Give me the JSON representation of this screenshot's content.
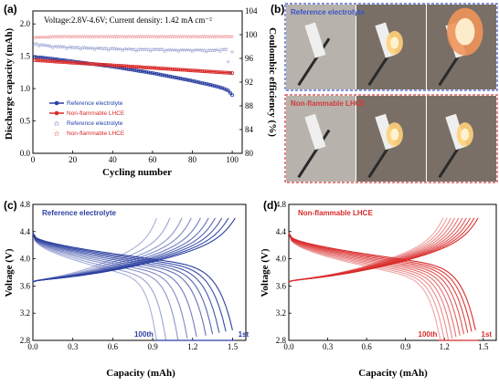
{
  "panels": {
    "a": "(a)",
    "b": "(b)",
    "c": "(c)",
    "d": "(d)"
  },
  "chart_data": [
    {
      "id": "a",
      "type": "scatter",
      "annotation": "Voltage:2.8V-4.6V; Current density: 1.42 mA cm⁻²",
      "xlabel": "Cycling number",
      "ylabel": "Discharge capacity (mAh)",
      "y2label": "Coulombic efficiency (%)",
      "xlim": [
        0,
        105
      ],
      "ylim": [
        0.0,
        2.2
      ],
      "y2lim": [
        80,
        104
      ],
      "xticks": [
        "0",
        "20",
        "40",
        "60",
        "80",
        "100"
      ],
      "yticks": [
        "0.0",
        "0.5",
        "1.0",
        "1.5",
        "2.0"
      ],
      "y2ticks": [
        "80",
        "84",
        "88",
        "92",
        "96",
        "100",
        "104"
      ],
      "legend": [
        "Reference electrolyte",
        "Non-flammable LHCE",
        "Reference electrolyte",
        "Non-flammable LHCE"
      ],
      "colors": {
        "reference": "#2b3fa0",
        "lhce": "#d92b2b"
      },
      "series": [
        {
          "name": "Reference electrolyte",
          "axis": "left",
          "color": "#2b3fa0",
          "x": [
            1,
            10,
            20,
            30,
            40,
            50,
            60,
            70,
            80,
            90,
            95,
            98,
            100
          ],
          "y": [
            1.49,
            1.46,
            1.42,
            1.38,
            1.34,
            1.29,
            1.24,
            1.18,
            1.12,
            1.05,
            1.01,
            0.97,
            0.9
          ]
        },
        {
          "name": "Non-flammable LHCE",
          "axis": "left",
          "color": "#d92b2b",
          "x": [
            1,
            10,
            20,
            30,
            40,
            50,
            60,
            70,
            80,
            90,
            100
          ],
          "y": [
            1.44,
            1.42,
            1.4,
            1.38,
            1.36,
            1.34,
            1.32,
            1.3,
            1.28,
            1.26,
            1.24
          ]
        },
        {
          "name": "Reference electrolyte",
          "axis": "right",
          "color": "#2b3fa0",
          "x": [
            1,
            10,
            20,
            30,
            40,
            50,
            60,
            70,
            80,
            90,
            97,
            98,
            99,
            100
          ],
          "y": [
            98.5,
            98.1,
            97.9,
            97.8,
            97.7,
            97.6,
            97.6,
            97.5,
            97.5,
            97.4,
            97.6,
            95.5,
            93.6,
            97.2
          ]
        },
        {
          "name": "Non-flammable LHCE",
          "axis": "right",
          "color": "#d92b2b",
          "x": [
            1,
            10,
            20,
            30,
            40,
            50,
            60,
            70,
            80,
            90,
            100
          ],
          "y": [
            99.6,
            99.7,
            99.7,
            99.7,
            99.7,
            99.7,
            99.7,
            99.7,
            99.7,
            99.7,
            99.7
          ]
        }
      ]
    },
    {
      "id": "c",
      "type": "line",
      "label": "Reference electrolyte",
      "xlabel": "Capacity (mAh)",
      "ylabel": "Voltage (V)",
      "xlim": [
        0.0,
        1.6
      ],
      "ylim": [
        2.8,
        4.8
      ],
      "xticks": [
        "0.0",
        "0.3",
        "0.6",
        "0.9",
        "1.2",
        "1.5"
      ],
      "yticks": [
        "2.8",
        "3.2",
        "3.6",
        "4.0",
        "4.4",
        "4.8"
      ],
      "marker_first": "1st",
      "marker_last": "100th",
      "color": "#2b3fa0",
      "charge_end_capacity": [
        1.52,
        1.47,
        1.42,
        1.37,
        1.32,
        1.26,
        1.19,
        1.12,
        1.03,
        0.93
      ],
      "discharge_end_capacity": [
        1.5,
        1.45,
        1.4,
        1.35,
        1.3,
        1.23,
        1.16,
        1.09,
        1.0,
        0.93
      ]
    },
    {
      "id": "d",
      "type": "line",
      "label": "Non-flammable LHCE",
      "xlabel": "Capacity (mAh)",
      "ylabel": "Voltage (V)",
      "xlim": [
        0.0,
        1.6
      ],
      "ylim": [
        2.8,
        4.8
      ],
      "xticks": [
        "0.0",
        "0.3",
        "0.6",
        "0.9",
        "1.2",
        "1.5"
      ],
      "yticks": [
        "2.8",
        "3.2",
        "3.6",
        "4.0",
        "4.4",
        "4.8"
      ],
      "marker_first": "1st",
      "marker_last": "100th",
      "color": "#d92b2b",
      "charge_end_capacity": [
        1.46,
        1.43,
        1.4,
        1.37,
        1.34,
        1.31,
        1.28,
        1.25,
        1.22,
        1.19
      ],
      "discharge_end_capacity": [
        1.44,
        1.41,
        1.38,
        1.35,
        1.32,
        1.29,
        1.26,
        1.23,
        1.2,
        1.17
      ]
    }
  ],
  "photos": {
    "top_label": "Reference electrolyte",
    "bottom_label": "Non-flammable LHCE",
    "top_border": "#3a55c8",
    "bottom_border": "#d23b3b"
  }
}
